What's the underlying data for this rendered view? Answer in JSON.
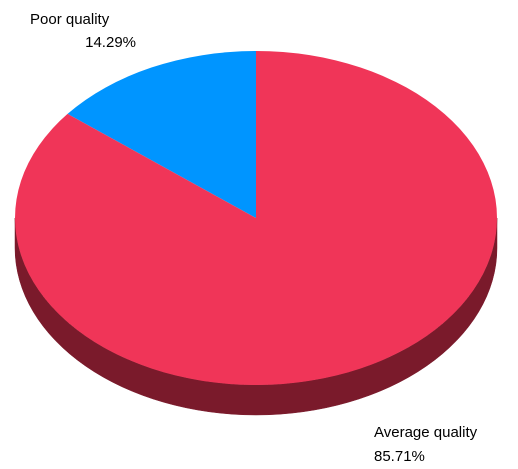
{
  "chart_data": {
    "type": "pie",
    "style": "3d",
    "slices": [
      {
        "label": "Poor quality",
        "percent_label": "14.29%",
        "value": 14.29,
        "color": "#0095ff",
        "side_color": "#00477a"
      },
      {
        "label": "Average quality",
        "percent_label": "85.71%",
        "value": 85.71,
        "color": "#f03558",
        "side_color": "#7a1a2b"
      }
    ],
    "start_angle_deg": 0,
    "direction": "counterclockwise",
    "legend": "none"
  }
}
